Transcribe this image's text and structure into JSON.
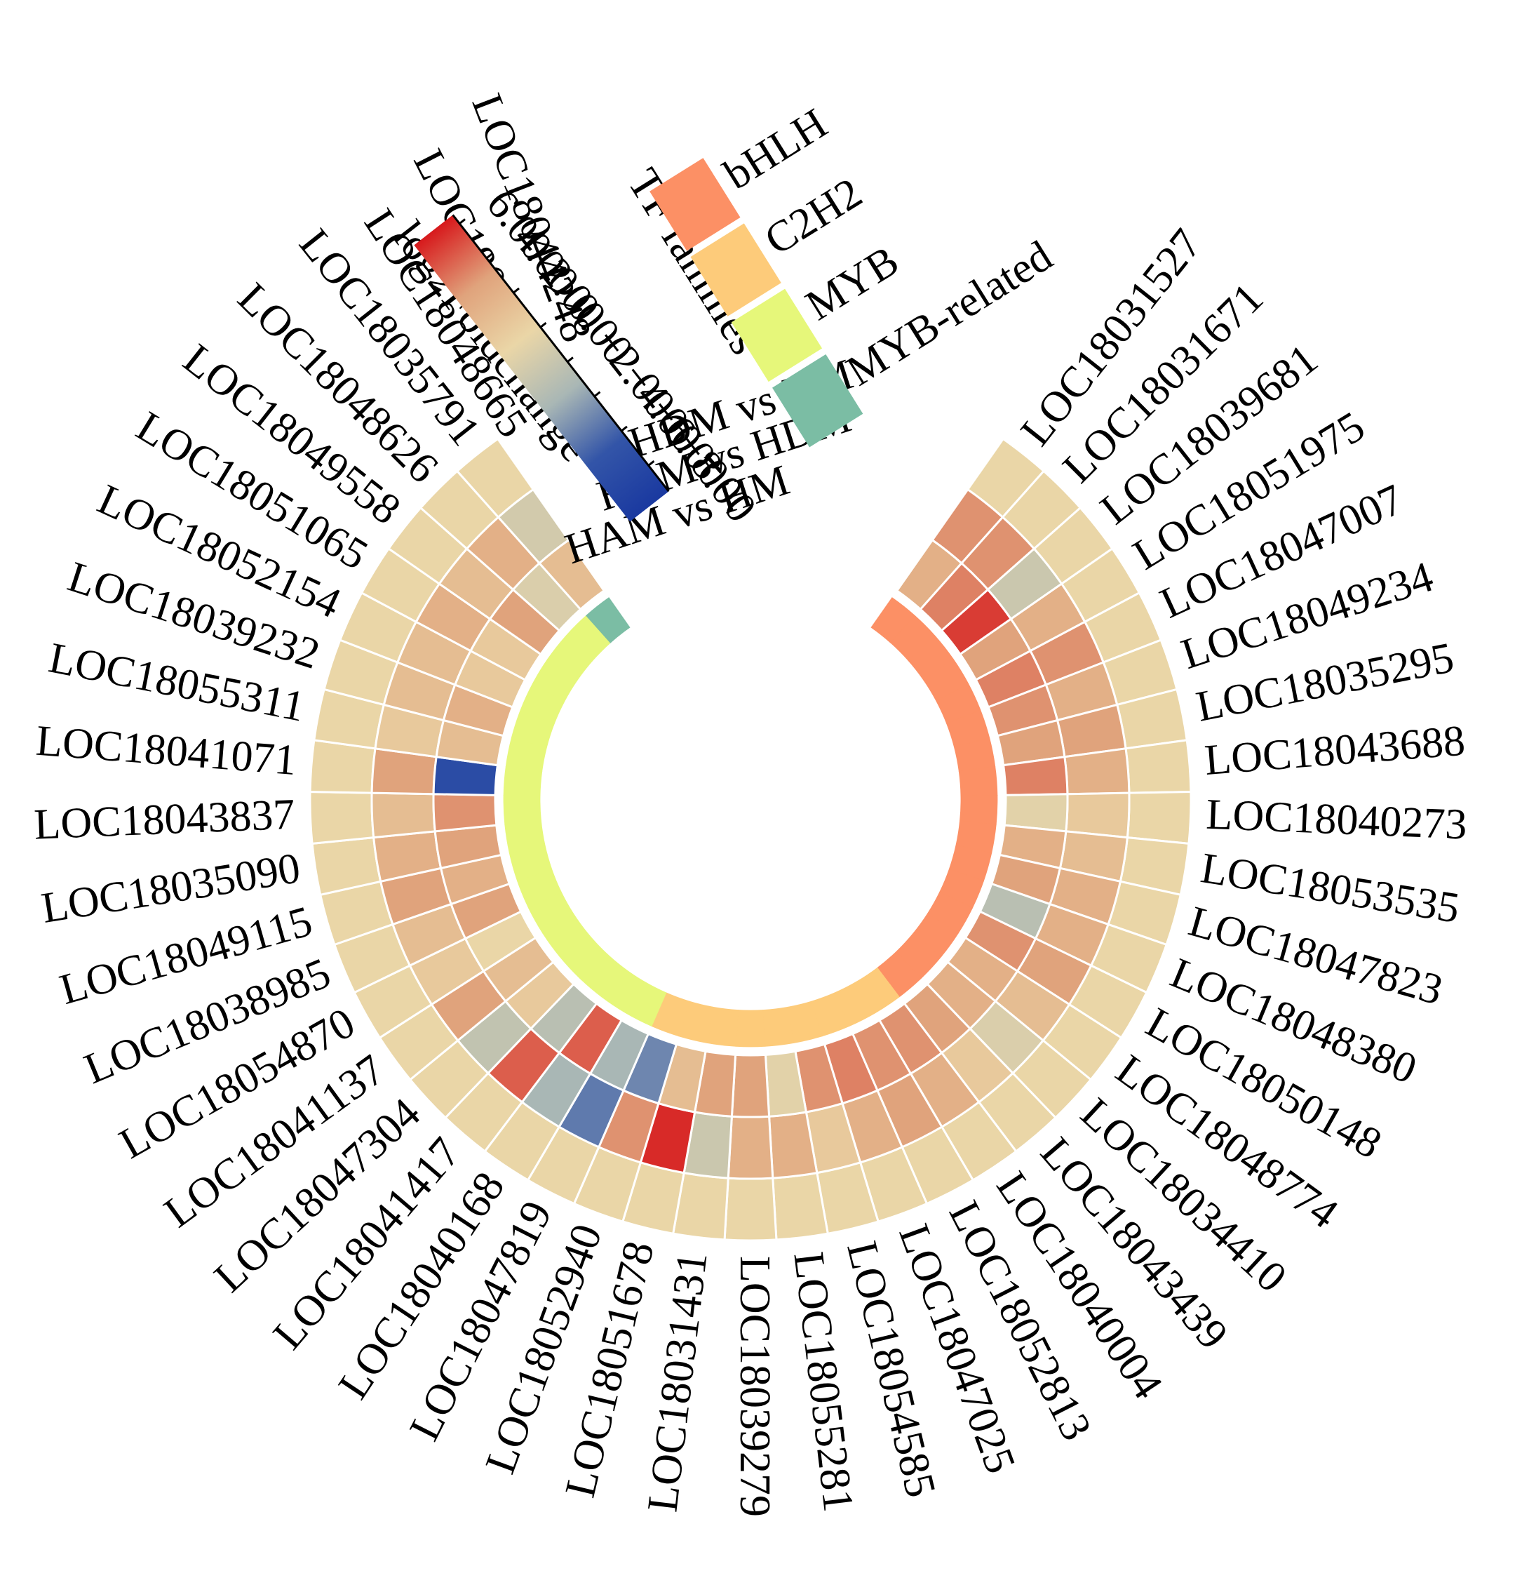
{
  "chart_data": {
    "type": "heatmap",
    "layout": "circular",
    "title": "",
    "ring_labels": [
      "HDM vs HM",
      "HAM vs HDM",
      "HAM vs HM"
    ],
    "colorbar": {
      "title": "log2Foldchange",
      "tick_labels": [
        "6.00",
        "4.00",
        "2.00",
        "0.00",
        "−2.00",
        "−4.00",
        "−6.00",
        "−8.00"
      ],
      "ticks": [
        6,
        4,
        2,
        0,
        -2,
        -4,
        -6,
        -8
      ],
      "range": [
        -9.5,
        6.5
      ],
      "colors": [
        "#d7191c",
        "#e0a37c",
        "#ead6a7",
        "#a9b7b5",
        "#3355a8",
        "#1a39a0"
      ]
    },
    "family_legend": {
      "title": "TF families",
      "items": [
        {
          "name": "bHLH",
          "color": "#fc9065"
        },
        {
          "name": "C2H2",
          "color": "#fdcb7a"
        },
        {
          "name": "MYB",
          "color": "#e6f77a"
        },
        {
          "name": "MYB-related",
          "color": "#7bbda4"
        }
      ]
    },
    "genes": [
      {
        "id": "LOC18031527",
        "family": "bHLH",
        "values": [
          0,
          2.5,
          1.5
        ]
      },
      {
        "id": "LOC18031671",
        "family": "bHLH",
        "values": [
          0,
          2.5,
          3
        ]
      },
      {
        "id": "LOC18039681",
        "family": "bHLH",
        "values": [
          0,
          -2,
          5
        ]
      },
      {
        "id": "LOC18051975",
        "family": "bHLH",
        "values": [
          0,
          1.5,
          2
        ]
      },
      {
        "id": "LOC18047007",
        "family": "bHLH",
        "values": [
          0,
          2.5,
          3
        ]
      },
      {
        "id": "LOC18049234",
        "family": "bHLH",
        "values": [
          0,
          1.5,
          2.5
        ]
      },
      {
        "id": "LOC18035295",
        "family": "bHLH",
        "values": [
          0,
          2,
          2
        ]
      },
      {
        "id": "LOC18043688",
        "family": "bHLH",
        "values": [
          0,
          1.5,
          3
        ]
      },
      {
        "id": "LOC18040273",
        "family": "bHLH",
        "values": [
          0,
          0.5,
          -0.5
        ]
      },
      {
        "id": "LOC18053535",
        "family": "bHLH",
        "values": [
          0,
          1,
          1.5
        ]
      },
      {
        "id": "LOC18047823",
        "family": "bHLH",
        "values": [
          0,
          1.5,
          2
        ]
      },
      {
        "id": "LOC18048380",
        "family": "bHLH",
        "values": [
          0,
          1.5,
          -3
        ]
      },
      {
        "id": "LOC18050148",
        "family": "bHLH",
        "values": [
          0,
          2,
          2.5
        ]
      },
      {
        "id": "LOC18048774",
        "family": "bHLH",
        "values": [
          0,
          1,
          1.5
        ]
      },
      {
        "id": "LOC18034410",
        "family": "bHLH",
        "values": [
          0,
          -1,
          1.5
        ]
      },
      {
        "id": "LOC18043439",
        "family": "bHLH",
        "values": [
          0,
          0.5,
          2
        ]
      },
      {
        "id": "LOC18040004",
        "family": "C2H2",
        "values": [
          0,
          1.5,
          2.5
        ]
      },
      {
        "id": "LOC18052813",
        "family": "C2H2",
        "values": [
          0,
          2,
          2.5
        ]
      },
      {
        "id": "LOC18047025",
        "family": "C2H2",
        "values": [
          0,
          1.5,
          3
        ]
      },
      {
        "id": "LOC18054585",
        "family": "C2H2",
        "values": [
          0,
          0.5,
          2.5
        ]
      },
      {
        "id": "LOC18055281",
        "family": "C2H2",
        "values": [
          0,
          1.5,
          -0.5
        ]
      },
      {
        "id": "LOC18039279",
        "family": "C2H2",
        "values": [
          0,
          1.5,
          2
        ]
      },
      {
        "id": "LOC18031431",
        "family": "C2H2",
        "values": [
          0,
          -2,
          2
        ]
      },
      {
        "id": "LOC18051678",
        "family": "C2H2",
        "values": [
          0,
          5.5,
          1
        ]
      },
      {
        "id": "LOC18052940",
        "family": "C2H2",
        "values": [
          0,
          2.5,
          -6
        ]
      },
      {
        "id": "LOC18047819",
        "family": "MYB",
        "values": [
          0,
          -6.5,
          -4
        ]
      },
      {
        "id": "LOC18040168",
        "family": "MYB",
        "values": [
          0,
          -4,
          4
        ]
      },
      {
        "id": "LOC18041417",
        "family": "MYB",
        "values": [
          0,
          4,
          -3
        ]
      },
      {
        "id": "LOC18047304",
        "family": "MYB",
        "values": [
          0,
          -2.5,
          0.5
        ]
      },
      {
        "id": "LOC18041137",
        "family": "MYB",
        "values": [
          0,
          2,
          1
        ]
      },
      {
        "id": "LOC18054870",
        "family": "MYB",
        "values": [
          0,
          0.5,
          0
        ]
      },
      {
        "id": "LOC18038985",
        "family": "MYB",
        "values": [
          0,
          1,
          2
        ]
      },
      {
        "id": "LOC18049115",
        "family": "MYB",
        "values": [
          0,
          2,
          1.5
        ]
      },
      {
        "id": "LOC18035090",
        "family": "MYB",
        "values": [
          0,
          1.5,
          2
        ]
      },
      {
        "id": "LOC18043837",
        "family": "MYB",
        "values": [
          0,
          1,
          2.5
        ]
      },
      {
        "id": "LOC18041071",
        "family": "MYB",
        "values": [
          0,
          2,
          -8.5
        ]
      },
      {
        "id": "LOC18055311",
        "family": "MYB",
        "values": [
          0,
          0.5,
          1
        ]
      },
      {
        "id": "LOC18039232",
        "family": "MYB",
        "values": [
          0,
          1,
          1.5
        ]
      },
      {
        "id": "LOC18052154",
        "family": "MYB",
        "values": [
          0,
          1,
          0.5
        ]
      },
      {
        "id": "LOC18051065",
        "family": "MYB",
        "values": [
          0,
          1.5,
          0.5
        ]
      },
      {
        "id": "LOC18049558",
        "family": "MYB",
        "values": [
          0,
          1,
          2
        ]
      },
      {
        "id": "LOC18048626",
        "family": "MYB",
        "values": [
          0,
          1.5,
          -1
        ]
      },
      {
        "id": "LOC18035791",
        "family": "MYB-related",
        "values": [
          0,
          -1.5,
          1
        ]
      }
    ],
    "gap_labels": [
      "LOC18048665",
      "LOC18035275",
      "LOC18044248"
    ]
  }
}
